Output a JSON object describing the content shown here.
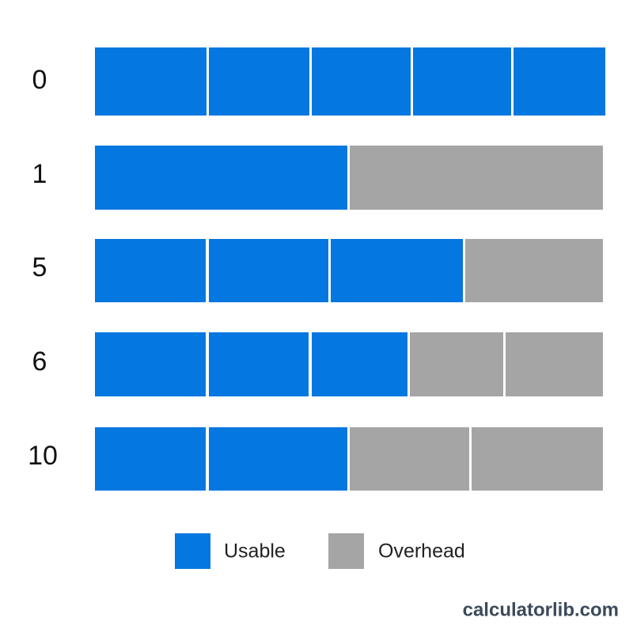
{
  "rows": [
    {
      "label": "0"
    },
    {
      "label": "1"
    },
    {
      "label": "5"
    },
    {
      "label": "6"
    },
    {
      "label": "10"
    }
  ],
  "legend": [
    {
      "label": "Usable"
    },
    {
      "label": "Overhead"
    }
  ],
  "footer": "calculatorlib.com"
}
